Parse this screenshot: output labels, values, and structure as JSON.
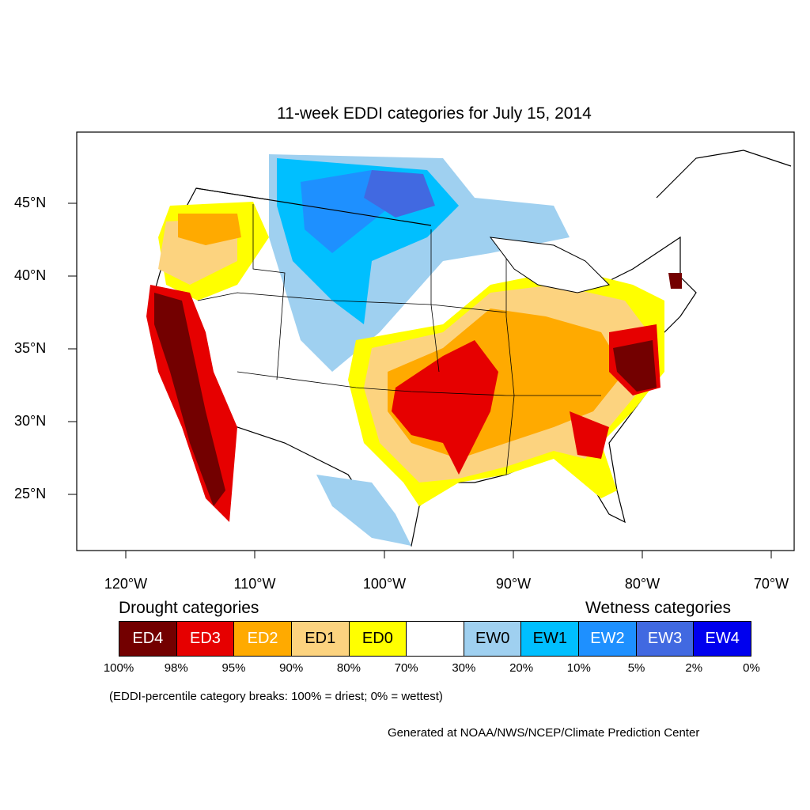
{
  "title": "11-week EDDI categories for July 15, 2014",
  "axes": {
    "lat_labels": [
      "45°N",
      "40°N",
      "35°N",
      "30°N",
      "25°N"
    ],
    "lon_labels": [
      "120°W",
      "110°W",
      "100°W",
      "90°W",
      "80°W",
      "70°W"
    ]
  },
  "legend": {
    "drought_heading": "Drought categories",
    "wetness_heading": "Wetness categories",
    "categories": [
      {
        "label": "ED4",
        "color": "#730000",
        "text_color": "#ffffff"
      },
      {
        "label": "ED3",
        "color": "#e60000",
        "text_color": "#ffffff"
      },
      {
        "label": "ED2",
        "color": "#ffaa00",
        "text_color": "#ffffff"
      },
      {
        "label": "ED1",
        "color": "#fcd37f",
        "text_color": "#000000"
      },
      {
        "label": "ED0",
        "color": "#ffff00",
        "text_color": "#000000"
      },
      {
        "label": "",
        "color": "#ffffff",
        "text_color": "#000000"
      },
      {
        "label": "EW0",
        "color": "#9fd0f0",
        "text_color": "#000000"
      },
      {
        "label": "EW1",
        "color": "#00bfff",
        "text_color": "#000000"
      },
      {
        "label": "EW2",
        "color": "#1e90ff",
        "text_color": "#ffffff"
      },
      {
        "label": "EW3",
        "color": "#4169e1",
        "text_color": "#ffffff"
      },
      {
        "label": "EW4",
        "color": "#0000ee",
        "text_color": "#ffffff"
      }
    ],
    "breaks": [
      "100%",
      "98%",
      "95%",
      "90%",
      "80%",
      "70%",
      "30%",
      "20%",
      "10%",
      "5%",
      "2%",
      "0%"
    ]
  },
  "note": "(EDDI-percentile category breaks: 100% = driest; 0% = wettest)",
  "credit": "Generated at NOAA/NWS/NCEP/Climate Prediction Center"
}
